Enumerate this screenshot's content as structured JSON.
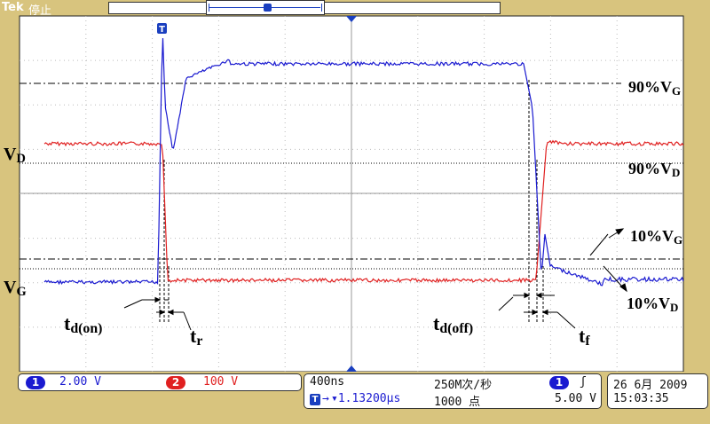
{
  "header": {
    "brand": "Tek",
    "run_status": "停止",
    "trigger_marker": "T"
  },
  "annotations": {
    "vd": "VD",
    "vg": "VG",
    "vg90": "90%VG",
    "vd90": "90%VD",
    "vg10": "10%VG",
    "vd10": "10%VD",
    "td_on": "td(on)",
    "tr": "tr",
    "td_off": "td(off)",
    "tf": "tf"
  },
  "channels": {
    "ch1": {
      "number": "1",
      "scale": "2.00 V",
      "color": "#1a1ad0"
    },
    "ch2": {
      "number": "2",
      "scale": "100 V",
      "color": "#e02020"
    }
  },
  "timebase": {
    "time_per_div": "400ns",
    "sample_rate": "250M次/秒",
    "trigger_position": "▾1.13200µs",
    "record_length": "1000 点"
  },
  "trigger": {
    "source": "1",
    "slope": "ʃ",
    "level": "5.00 V"
  },
  "clock": {
    "date": "26 6月  2009",
    "time": "15:03:35"
  },
  "colors": {
    "background": "#d8c47e",
    "graticule": "#ffffff",
    "ch1_trace": "#1a1ad0",
    "ch2_trace": "#e02020"
  }
}
